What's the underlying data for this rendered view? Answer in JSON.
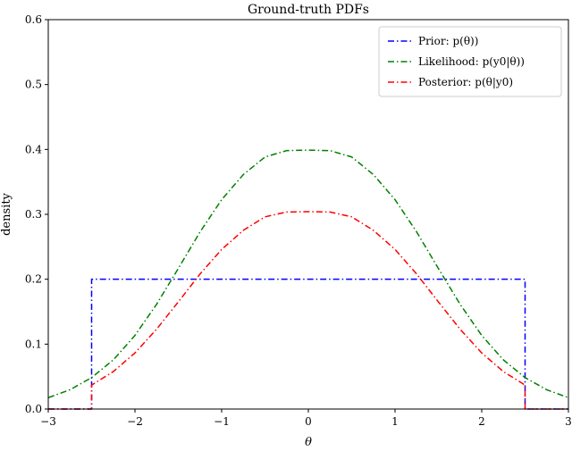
{
  "chart_data": {
    "type": "line",
    "title": "Ground-truth PDFs",
    "xlabel": "θ",
    "ylabel": "density",
    "xlim": [
      -3,
      3
    ],
    "ylim": [
      0,
      0.6
    ],
    "xticks": [
      -3,
      -2,
      -1,
      0,
      1,
      2,
      3
    ],
    "xtick_labels": [
      "−3",
      "−2",
      "−1",
      "0",
      "1",
      "2",
      "3"
    ],
    "yticks": [
      0,
      0.1,
      0.2,
      0.3,
      0.4,
      0.5,
      0.6
    ],
    "ytick_labels": [
      "0.0",
      "0.1",
      "0.2",
      "0.3",
      "0.4",
      "0.5",
      "0.6"
    ],
    "grid": false,
    "legend_position": "top-right",
    "series": [
      {
        "name": "Prior: p(θ))",
        "color": "#0000ff",
        "linestyle": "dash-dot",
        "x": [
          -3.0,
          -2.5,
          -2.5,
          2.5,
          2.5,
          3.0
        ],
        "y": [
          0.0,
          0.0,
          0.2,
          0.2,
          0.0,
          0.0
        ]
      },
      {
        "name": "Likelihood: p(y0|θ))",
        "color": "#008000",
        "linestyle": "dash-dot",
        "x": [
          -3.0,
          -2.75,
          -2.5,
          -2.25,
          -2.0,
          -1.75,
          -1.5,
          -1.25,
          -1.0,
          -0.75,
          -0.5,
          -0.25,
          0.0,
          0.25,
          0.5,
          0.75,
          1.0,
          1.25,
          1.5,
          1.75,
          2.0,
          2.25,
          2.5,
          2.75,
          3.0
        ],
        "y": [
          0.0175,
          0.0297,
          0.0484,
          0.0757,
          0.1134,
          0.1615,
          0.2166,
          0.2727,
          0.3226,
          0.3613,
          0.3884,
          0.3982,
          0.3989,
          0.3982,
          0.3884,
          0.3613,
          0.3226,
          0.2727,
          0.2166,
          0.1615,
          0.1134,
          0.0757,
          0.0484,
          0.0297,
          0.0175
        ]
      },
      {
        "name": "Posterior: p(θ|y0)",
        "color": "#ff0000",
        "linestyle": "dash-dot",
        "x": [
          -3.0,
          -2.5,
          -2.5,
          -2.25,
          -2.0,
          -1.75,
          -1.5,
          -1.25,
          -1.0,
          -0.75,
          -0.5,
          -0.25,
          0.0,
          0.25,
          0.5,
          0.75,
          1.0,
          1.25,
          1.5,
          1.75,
          2.0,
          2.25,
          2.5,
          2.5,
          3.0
        ],
        "y": [
          0.0,
          0.0,
          0.0369,
          0.0577,
          0.0864,
          0.1231,
          0.1651,
          0.2079,
          0.2459,
          0.2754,
          0.2961,
          0.3036,
          0.3041,
          0.3036,
          0.2961,
          0.2754,
          0.2459,
          0.2079,
          0.1651,
          0.1231,
          0.0864,
          0.0577,
          0.0369,
          0.0,
          0.0
        ]
      }
    ]
  }
}
